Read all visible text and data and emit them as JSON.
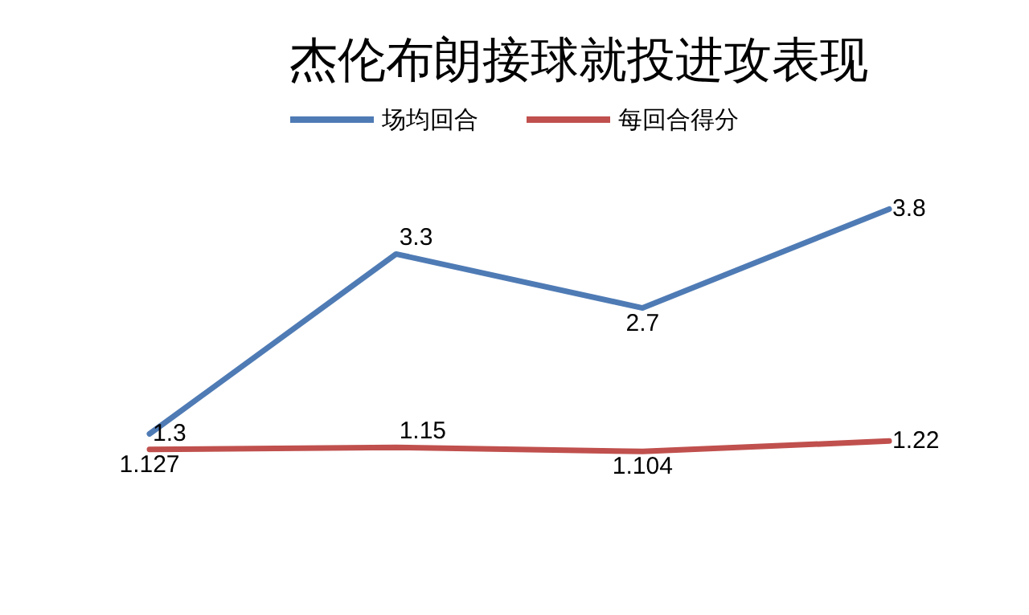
{
  "chart_data": {
    "type": "line",
    "title": "杰伦布朗接球就投进攻表现",
    "categories": [
      null,
      null,
      null,
      null
    ],
    "tick_labels": false,
    "grid": false,
    "legend": "top",
    "marker": "none",
    "data_labels": true,
    "series": [
      {
        "name": "场均回合",
        "color": "#4f7bb5",
        "values": [
          1.3,
          3.3,
          2.7,
          3.8
        ]
      },
      {
        "name": "每回合得分",
        "color": "#c0504d",
        "values": [
          1.127,
          1.15,
          1.104,
          1.22
        ]
      }
    ]
  }
}
